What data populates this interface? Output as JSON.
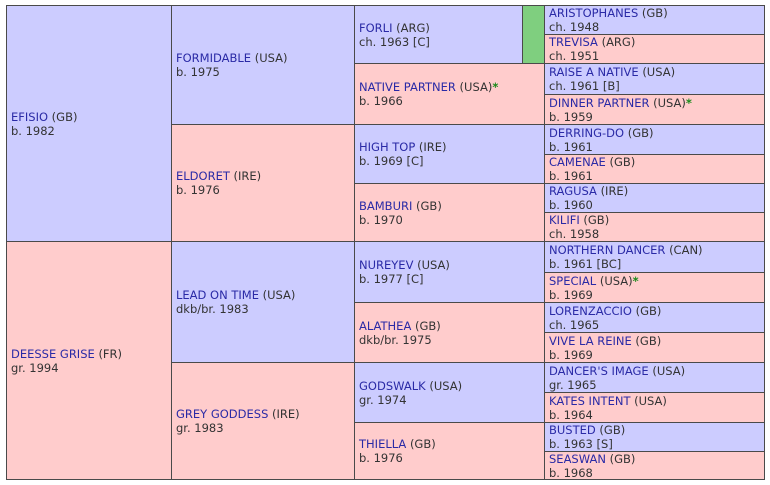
{
  "pedigree": {
    "sire": {
      "name": "EFISIO",
      "country": "(GB)",
      "info": "b. 1982"
    },
    "dam": {
      "name": "DEESSE GRISE",
      "country": "(FR)",
      "info": "gr. 1994"
    },
    "g2": [
      {
        "name": "FORMIDABLE",
        "country": "(USA)",
        "info": "b. 1975"
      },
      {
        "name": "ELDORET",
        "country": "(IRE)",
        "info": "b. 1976"
      },
      {
        "name": "LEAD ON TIME",
        "country": "(USA)",
        "info": "dkb/br. 1983"
      },
      {
        "name": "GREY GODDESS",
        "country": "(IRE)",
        "info": "gr. 1983"
      }
    ],
    "g3": [
      {
        "name": "FORLI",
        "country": "(ARG)",
        "info": "ch. 1963 [C]",
        "star": ""
      },
      {
        "name": "NATIVE PARTNER",
        "country": "(USA)",
        "info": "b. 1966",
        "star": "*"
      },
      {
        "name": "HIGH TOP",
        "country": "(IRE)",
        "info": "b. 1969 [C]",
        "star": ""
      },
      {
        "name": "BAMBURI",
        "country": "(GB)",
        "info": "b. 1970",
        "star": ""
      },
      {
        "name": "NUREYEV",
        "country": "(USA)",
        "info": "b. 1977 [C]",
        "star": ""
      },
      {
        "name": "ALATHEA",
        "country": "(GB)",
        "info": "dkb/br. 1975",
        "star": ""
      },
      {
        "name": "GODSWALK",
        "country": "(USA)",
        "info": "gr. 1974",
        "star": ""
      },
      {
        "name": "THIELLA",
        "country": "(GB)",
        "info": "b. 1976",
        "star": ""
      }
    ],
    "g4": [
      {
        "name": "ARISTOPHANES",
        "country": "(GB)",
        "info": "ch. 1948",
        "star": ""
      },
      {
        "name": "TREVISA",
        "country": "(ARG)",
        "info": "ch. 1951",
        "star": ""
      },
      {
        "name": "RAISE A NATIVE",
        "country": "(USA)",
        "info": "ch. 1961 [B]",
        "star": ""
      },
      {
        "name": "DINNER PARTNER",
        "country": "(USA)",
        "info": "b. 1959",
        "star": "*"
      },
      {
        "name": "DERRING-DO",
        "country": "(GB)",
        "info": "b. 1961",
        "star": ""
      },
      {
        "name": "CAMENAE",
        "country": "(GB)",
        "info": "b. 1961",
        "star": ""
      },
      {
        "name": "RAGUSA",
        "country": "(IRE)",
        "info": "b. 1960",
        "star": ""
      },
      {
        "name": "KILIFI",
        "country": "(GB)",
        "info": "ch. 1958",
        "star": ""
      },
      {
        "name": "NORTHERN DANCER",
        "country": "(CAN)",
        "info": "b. 1961 [BC]",
        "star": ""
      },
      {
        "name": "SPECIAL",
        "country": "(USA)",
        "info": "b. 1969",
        "star": "*"
      },
      {
        "name": "LORENZACCIO",
        "country": "(GB)",
        "info": "ch. 1965",
        "star": ""
      },
      {
        "name": "VIVE LA REINE",
        "country": "(GB)",
        "info": "b. 1969",
        "star": ""
      },
      {
        "name": "DANCER'S IMAGE",
        "country": "(USA)",
        "info": "gr. 1965",
        "star": ""
      },
      {
        "name": "KATES INTENT",
        "country": "(USA)",
        "info": "b. 1964",
        "star": ""
      },
      {
        "name": "BUSTED",
        "country": "(GB)",
        "info": "b. 1963 [S]",
        "star": ""
      },
      {
        "name": "SEASWAN",
        "country": "(GB)",
        "info": "b. 1968",
        "star": ""
      }
    ],
    "colors": {
      "male": "#ccccff",
      "female": "#ffcccc",
      "marker": "#7fcf7f"
    }
  }
}
